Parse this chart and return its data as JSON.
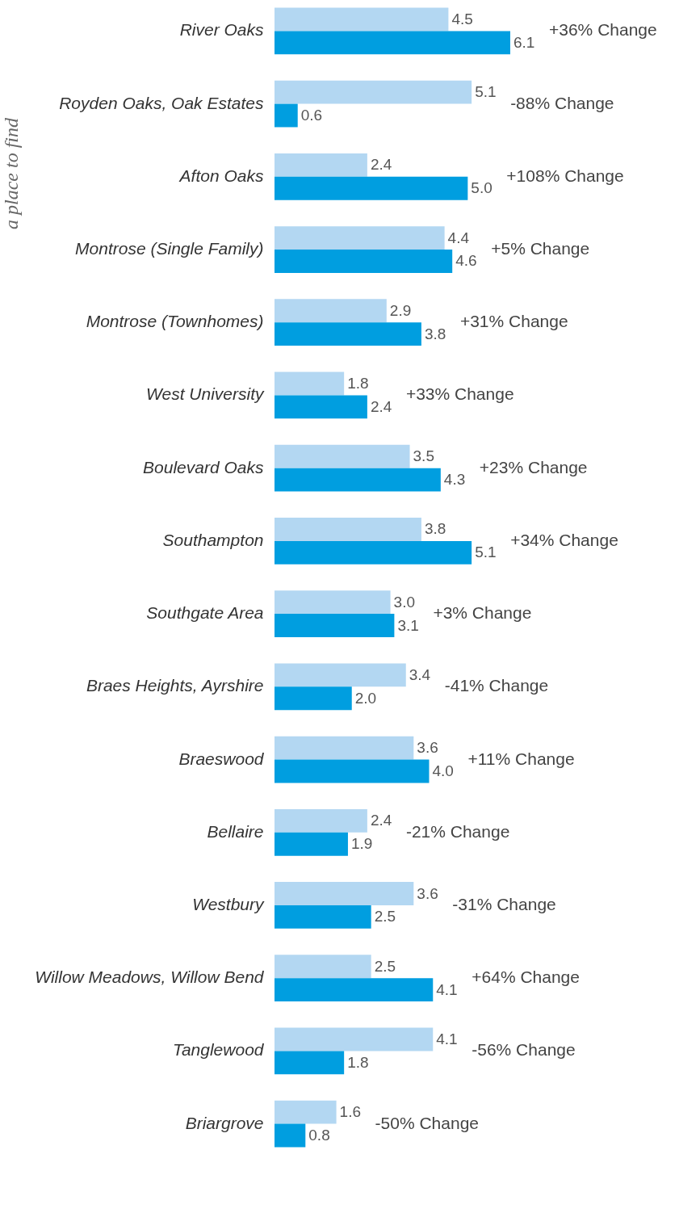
{
  "chart_data": {
    "type": "bar",
    "orientation": "horizontal",
    "tick_labels": "y",
    "grid": false,
    "categories": [
      "River Oaks",
      "Royden Oaks, Oak Estates",
      "Afton Oaks",
      "Montrose (Single Family)",
      "Montrose (Townhomes)",
      "West University",
      "Boulevard Oaks",
      "Southampton",
      "Southgate Area",
      "Braes Heights, Ayrshire",
      "Braeswood",
      "Bellaire",
      "Westbury",
      "Willow Meadows, Willow Bend",
      "Tanglewood",
      "Briargrove"
    ],
    "series": [
      {
        "color": "#b3d7f2",
        "values": [
          4.5,
          5.1,
          2.4,
          4.4,
          2.9,
          1.8,
          3.5,
          3.8,
          3.0,
          3.4,
          3.6,
          2.4,
          3.6,
          2.5,
          4.1,
          1.6
        ],
        "value_labels": [
          "4.5",
          "5.1",
          "2.4",
          "4.4",
          "2.9",
          "1.8",
          "3.5",
          "3.8",
          "3.0",
          "3.4",
          "3.6",
          "2.4",
          "3.6",
          "2.5",
          "4.1",
          "1.6"
        ]
      },
      {
        "color": "#009ee0",
        "values": [
          6.1,
          0.6,
          5.0,
          4.6,
          3.8,
          2.4,
          4.3,
          5.1,
          3.1,
          2.0,
          4.0,
          1.9,
          2.5,
          4.1,
          1.8,
          0.8
        ],
        "value_labels": [
          "6.1",
          "0.6",
          "5.0",
          "4.6",
          "3.8",
          "2.4",
          "4.3",
          "5.1",
          "3.1",
          "2.0",
          "4.0",
          "1.9",
          "2.5",
          "4.1",
          "1.8",
          "0.8"
        ]
      }
    ],
    "annotations": [
      "+36% Change",
      "-88% Change",
      "+108% Change",
      "+5% Change",
      "+31% Change",
      "+33% Change",
      "+23% Change",
      "+34% Change",
      "+3% Change",
      "-41% Change",
      "+11% Change",
      "-21% Change",
      "-31% Change",
      "+64% Change",
      "-56% Change",
      "-50% Change",
      "a place to find"
    ]
  }
}
